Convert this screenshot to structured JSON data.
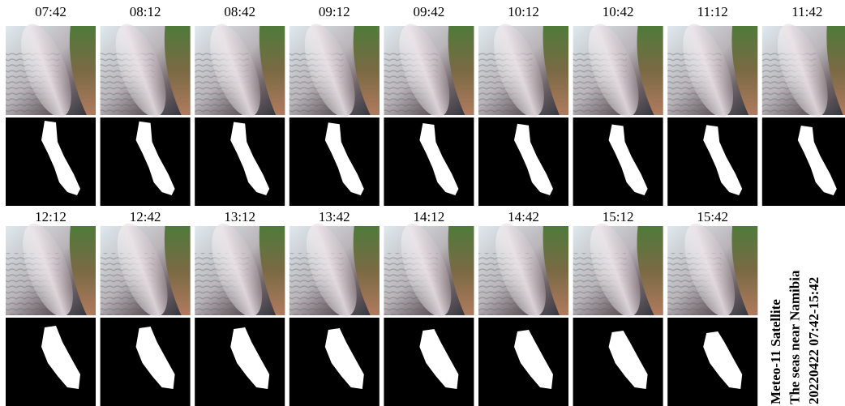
{
  "figure": {
    "rows": [
      {
        "times": [
          "07:42",
          "08:12",
          "08:42",
          "09:12",
          "09:42",
          "10:12",
          "10:42",
          "11:12",
          "11:42"
        ]
      },
      {
        "times": [
          "12:12",
          "12:42",
          "13:12",
          "13:42",
          "14:12",
          "14:42",
          "15:12",
          "15:42"
        ]
      }
    ],
    "caption": [
      "Meteo-11 Satellite",
      "The seas near Namibia",
      "20220422 07:42-15:42"
    ]
  }
}
